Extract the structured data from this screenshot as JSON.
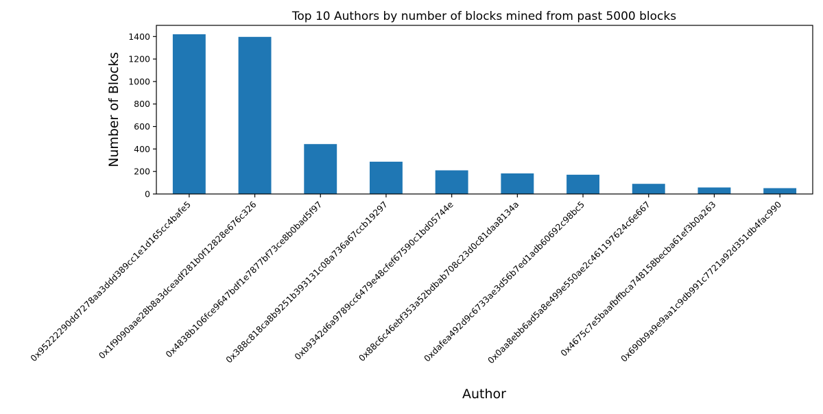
{
  "chart_data": {
    "type": "bar",
    "title": "Top 10 Authors by number of blocks mined from past 5000 blocks",
    "xlabel": "Author",
    "ylabel": "Number of Blocks",
    "categories": [
      "0x95222290dd7278aa3ddd389cc1e1d165cc4bafe5",
      "0x1f9090aae28b8a3dceadf281b0f12828e676c326",
      "0x4838b106fce9647bdf1e7877bf73ce8b0bad5f97",
      "0x388c818ca8b9251b393131c08a736a67ccb19297",
      "0xb9342d6a9789cc6479e48cfef67590c1bd05744e",
      "0x88c6c46ebf353a52bdbab708c23d0c81daa8134a",
      "0xdafea492d9c6733ae3d56b7ed1adb60692c98bc5",
      "0x0aa8ebb6ad5a8e499e550ae2c461197624c6e667",
      "0x4675c7e5baafbffbca748158becba61ef3b0a263",
      "0x690b9a9e9aa1c9db991c7721a92d351db4fac990"
    ],
    "values": [
      1420,
      1397,
      444,
      287,
      210,
      183,
      171,
      90,
      58,
      52
    ],
    "ylim": [
      0,
      1400
    ],
    "yticks": [
      0,
      200,
      400,
      600,
      800,
      1000,
      1200,
      1400
    ],
    "bar_color": "#1f77b4",
    "axis_color": "#000000",
    "grid": false,
    "legend": "none",
    "x_tick_rotation_deg": 45
  }
}
